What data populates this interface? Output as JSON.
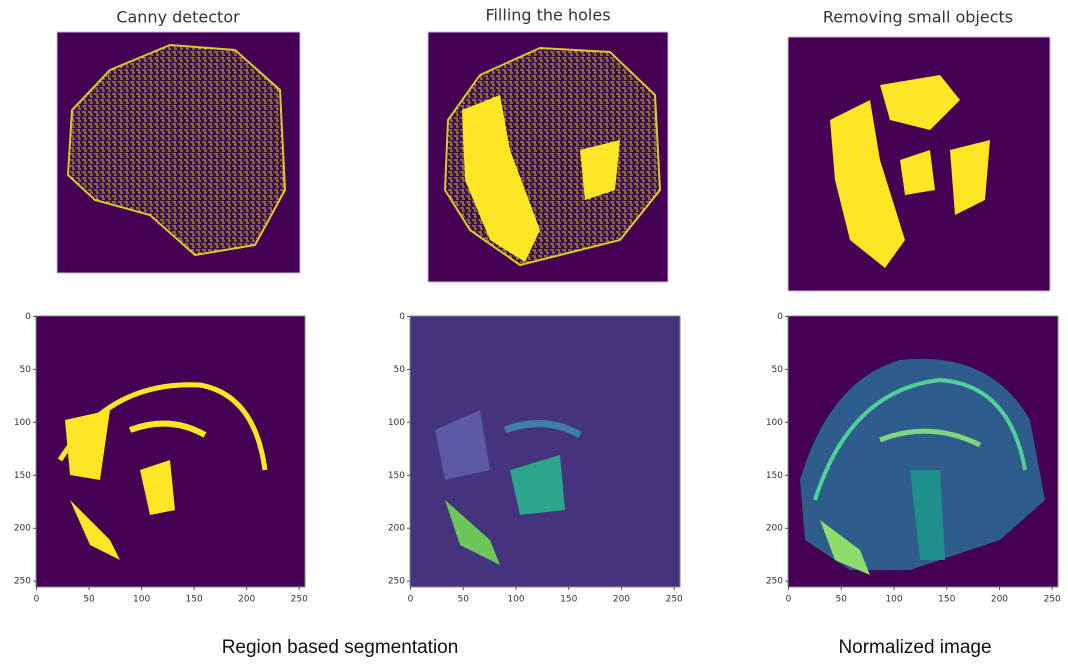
{
  "panels": [
    {
      "title": "Canny detector"
    },
    {
      "title": "Filling the holes"
    },
    {
      "title": "Removing small objects"
    }
  ],
  "axis_ticks": [
    0,
    50,
    100,
    150,
    200,
    250
  ],
  "captions": [
    "Region based segmentation",
    "Normalized image"
  ]
}
